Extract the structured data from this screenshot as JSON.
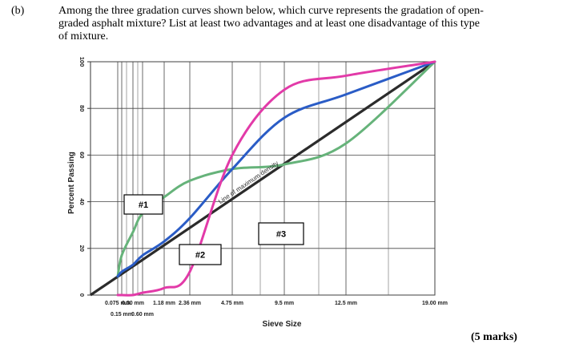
{
  "question": {
    "label": "(b)",
    "lines": [
      "Among the three gradation curves shown below, which curve represents the gradation of open-",
      "graded asphalt mixture? List at least two advantages and at least one disadvantage of this type",
      "of mixture."
    ]
  },
  "marks": "(5 marks)",
  "chart_data": {
    "type": "line",
    "xlabel": "Sieve Size",
    "ylabel": "Percent Passing",
    "ylim": [
      0,
      100
    ],
    "yticks": [
      "0",
      "20",
      "40",
      "60",
      "80",
      "100"
    ],
    "sieves": [
      {
        "label": "0.075 mm",
        "row": 0
      },
      {
        "label": "0.30 mm",
        "row": 0
      },
      {
        "label": "0.15 mm",
        "row": 1
      },
      {
        "label": "0.60 mm",
        "row": 1
      },
      {
        "label": "1.18 mm",
        "row": 0
      },
      {
        "label": "2.36 mm",
        "row": 0
      },
      {
        "label": "4.75 mm",
        "row": 0
      },
      {
        "label": "9.5 mm",
        "row": 0
      },
      {
        "label": "12.5 mm",
        "row": 0
      },
      {
        "label": "19.00 mm",
        "row": 0
      }
    ],
    "grid": true,
    "max_density_label": "Line of maximum density",
    "colors": {
      "curve1": "#66b37a",
      "curve2": "#2a5cc6",
      "curve3": "#e23aa8",
      "max_density": "#2b2b2b"
    },
    "series": [
      {
        "name": "#1",
        "color_key": "curve1",
        "points": [
          {
            "x": "0.075 mm",
            "y": 8
          },
          {
            "x": "0.15 mm",
            "y": 17
          },
          {
            "x": "0.30 mm",
            "y": 27
          },
          {
            "x": "0.60 mm",
            "y": 35
          },
          {
            "x": "1.18 mm",
            "y": 42
          },
          {
            "x": "2.36 mm",
            "y": 49
          },
          {
            "x": "4.75 mm",
            "y": 54
          },
          {
            "x": "9.5 mm",
            "y": 56
          },
          {
            "x": "12.5 mm",
            "y": 65
          },
          {
            "x": "19.00 mm",
            "y": 100
          }
        ]
      },
      {
        "name": "#2",
        "color_key": "curve2",
        "points": [
          {
            "x": "0.075 mm",
            "y": 8
          },
          {
            "x": "0.15 mm",
            "y": 10
          },
          {
            "x": "0.30 mm",
            "y": 13
          },
          {
            "x": "0.60 mm",
            "y": 17
          },
          {
            "x": "1.18 mm",
            "y": 23
          },
          {
            "x": "2.36 mm",
            "y": 33
          },
          {
            "x": "4.75 mm",
            "y": 54
          },
          {
            "x": "9.5 mm",
            "y": 76
          },
          {
            "x": "12.5 mm",
            "y": 86
          },
          {
            "x": "19.00 mm",
            "y": 100
          }
        ]
      },
      {
        "name": "#3",
        "color_key": "curve3",
        "points": [
          {
            "x": "0.075 mm",
            "y": 0
          },
          {
            "x": "0.15 mm",
            "y": 0
          },
          {
            "x": "0.30 mm",
            "y": 0
          },
          {
            "x": "0.60 mm",
            "y": 1
          },
          {
            "x": "1.18 mm",
            "y": 3
          },
          {
            "x": "2.36 mm",
            "y": 10
          },
          {
            "x": "4.75 mm",
            "y": 60
          },
          {
            "x": "9.5 mm",
            "y": 88
          },
          {
            "x": "12.5 mm",
            "y": 94
          },
          {
            "x": "19.00 mm",
            "y": 100
          }
        ]
      }
    ]
  }
}
